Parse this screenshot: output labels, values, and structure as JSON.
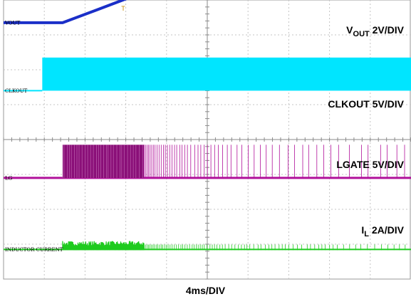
{
  "chart_data": {
    "type": "line",
    "title": "",
    "xlabel": "4ms/DIV",
    "grid": true,
    "grid_divisions": {
      "horizontal": 10,
      "vertical": 8
    },
    "x_unit": "ms",
    "x_per_div_ms": 4,
    "xlim": [
      0,
      40
    ],
    "trigger_marker": "T",
    "series": [
      {
        "name": "VOUT",
        "scale": "2V/DIV",
        "channel_label": "VOUT",
        "label_main": "V",
        "label_sub": "OUT",
        "label_scale": "2V/DIV",
        "color": "#1a2fc8",
        "kind": "ramp",
        "baseline_div": 0.65,
        "x": [
          0,
          5.8,
          9,
          14,
          18,
          22,
          26,
          40
        ],
        "y_div": [
          0.0,
          0.0,
          0.35,
          0.9,
          1.35,
          1.75,
          2.0,
          2.0
        ]
      },
      {
        "name": "CLKOUT",
        "scale": "5V/DIV",
        "channel_label": "CLKOUT",
        "label_main": "CLKOUT",
        "label_sub": "",
        "label_scale": "5V/DIV",
        "color": "#00e5ff",
        "kind": "step",
        "baseline_div": 2.6,
        "step_ms": 3.8,
        "high_div": 0.95
      },
      {
        "name": "LGATE",
        "scale": "5V/DIV",
        "channel_label": "LG",
        "label_main": "LGATE",
        "label_sub": "",
        "label_scale": "5V/DIV",
        "color": "#b0109a",
        "fill": "#8a0f78",
        "kind": "switching",
        "baseline_div": 5.1,
        "start_ms": 5.8,
        "dense_end_ms": 13.8,
        "fade_end_ms": 23,
        "high_div": 0.95
      },
      {
        "name": "IL",
        "scale": "2A/DIV",
        "channel_label": "INDUCTOR CURRENT",
        "label_main": "I",
        "label_sub": "L",
        "label_scale": "2A/DIV",
        "color": "#1ecb1e",
        "kind": "current",
        "baseline_div": 7.15,
        "start_ms": 5.8,
        "dense_end_ms": 13.8,
        "fade_end_ms": 23,
        "ripple_div": 0.2
      }
    ]
  }
}
